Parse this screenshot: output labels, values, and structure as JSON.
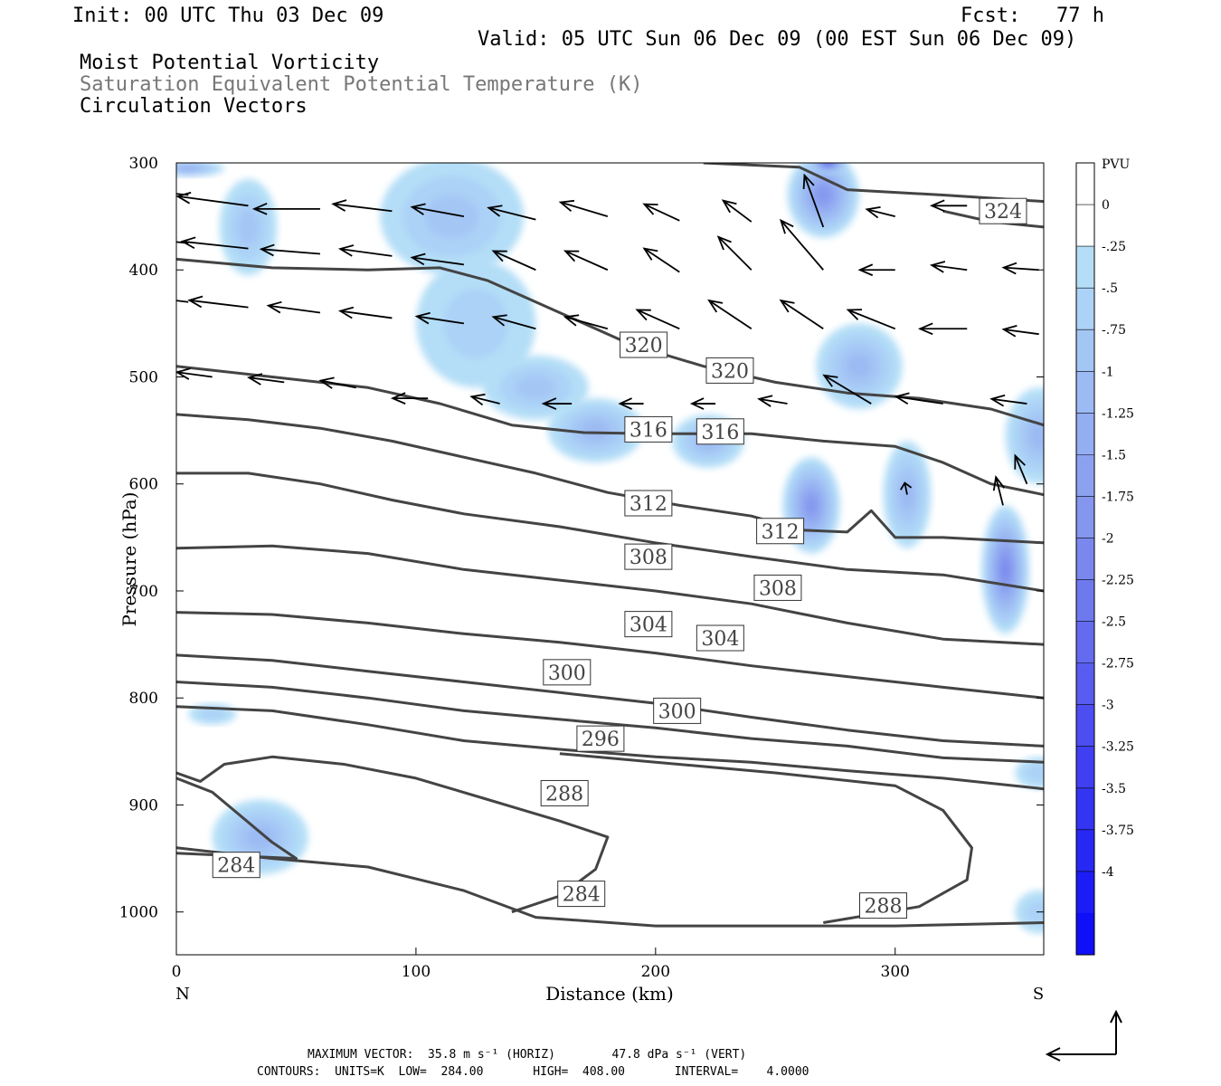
{
  "header": {
    "init": "Init: 00 UTC Thu 03 Dec 09",
    "fcst": "Fcst:   77 h",
    "valid": "Valid: 05 UTC Sun 06 Dec 09 (00 EST Sun 06 Dec 09)",
    "field1": "Moist Potential Vorticity",
    "field2": "Saturation Equivalent Potential Temperature (K)",
    "field3": "Circulation Vectors"
  },
  "footer": {
    "max_vector": "MAXIMUM VECTOR:  35.8 m s⁻¹ (HORIZ)        47.8 dPa s⁻¹ (VERT)",
    "contours": "CONTOURS:  UNITS=K  LOW=  284.00       HIGH=  408.00       INTERVAL=    4.0000"
  },
  "colors": {
    "contour": "#444444",
    "vector": "#000000",
    "pv_light": "#b4def7",
    "pv_mid": "#7f96ee",
    "pv_dark": "#2a35f2"
  },
  "chart_data": {
    "type": "cross-section",
    "xlabel": "Distance (km)",
    "ylabel": "Pressure (hPa)",
    "xlim": [
      0,
      362
    ],
    "ylim": [
      1040,
      300
    ],
    "y_scale": "linear",
    "xticks": [
      0,
      100,
      200,
      300
    ],
    "yticks": [
      300,
      400,
      500,
      600,
      700,
      800,
      900,
      1000
    ],
    "x_endpoints": {
      "left": "N",
      "right": "S"
    },
    "colorbar": {
      "label": "PVU",
      "ticks": [
        "0",
        "-.25",
        "-.5",
        "-.75",
        "-1",
        "-1.25",
        "-1.5",
        "-1.75",
        "-2",
        "-2.25",
        "-2.5",
        "-2.75",
        "-3",
        "-3.25",
        "-3.5",
        "-3.75",
        "-4"
      ],
      "colors": [
        "#ffffff",
        "#ffffff",
        "#b4def7",
        "#acd2f7",
        "#a4c6f5",
        "#9cbaf3",
        "#94aef2",
        "#8ca2f0",
        "#8496ee",
        "#7a88ee",
        "#6f79ee",
        "#646bef",
        "#585cf0",
        "#4c4ef1",
        "#4040f2",
        "#3434f3",
        "#2828f4",
        "#1c1cf6",
        "#0f0ff8"
      ]
    },
    "contour_interval": 4,
    "contours": [
      {
        "label": "324",
        "points": [
          [
            220,
            300
          ],
          [
            260,
            304
          ],
          [
            280,
            325
          ],
          [
            320,
            330
          ],
          [
            362,
            336
          ]
        ]
      },
      {
        "label": "324",
        "points": [
          [
            320,
            345
          ],
          [
            340,
            355
          ],
          [
            362,
            360
          ]
        ]
      },
      {
        "label": "320",
        "points": [
          [
            0,
            390
          ],
          [
            40,
            398
          ],
          [
            80,
            400
          ],
          [
            110,
            398
          ],
          [
            130,
            410
          ],
          [
            160,
            440
          ],
          [
            190,
            470
          ],
          [
            220,
            490
          ],
          [
            250,
            505
          ],
          [
            280,
            515
          ],
          [
            310,
            520
          ],
          [
            340,
            530
          ],
          [
            362,
            545
          ]
        ]
      },
      {
        "label": "316",
        "points": [
          [
            0,
            490
          ],
          [
            40,
            500
          ],
          [
            80,
            510
          ],
          [
            110,
            525
          ],
          [
            140,
            545
          ],
          [
            170,
            552
          ],
          [
            200,
            553
          ],
          [
            240,
            553
          ],
          [
            270,
            560
          ],
          [
            300,
            565
          ],
          [
            320,
            580
          ],
          [
            340,
            600
          ],
          [
            362,
            610
          ]
        ]
      },
      {
        "label": "312",
        "points": [
          [
            0,
            535
          ],
          [
            30,
            540
          ],
          [
            60,
            548
          ],
          [
            90,
            560
          ],
          [
            120,
            575
          ],
          [
            150,
            590
          ],
          [
            180,
            608
          ],
          [
            210,
            620
          ],
          [
            240,
            630
          ],
          [
            260,
            643
          ],
          [
            280,
            645
          ],
          [
            290,
            625
          ],
          [
            300,
            650
          ],
          [
            320,
            650
          ],
          [
            362,
            655
          ]
        ]
      },
      {
        "label": "308",
        "points": [
          [
            0,
            590
          ],
          [
            30,
            590
          ],
          [
            60,
            600
          ],
          [
            90,
            615
          ],
          [
            120,
            628
          ],
          [
            160,
            640
          ],
          [
            200,
            655
          ],
          [
            240,
            668
          ],
          [
            280,
            680
          ],
          [
            320,
            685
          ],
          [
            362,
            700
          ]
        ]
      },
      {
        "label": "304",
        "points": [
          [
            0,
            660
          ],
          [
            40,
            658
          ],
          [
            80,
            665
          ],
          [
            120,
            680
          ],
          [
            160,
            690
          ],
          [
            200,
            700
          ],
          [
            240,
            712
          ],
          [
            280,
            730
          ],
          [
            320,
            745
          ],
          [
            362,
            750
          ]
        ]
      },
      {
        "label": "300",
        "points": [
          [
            0,
            720
          ],
          [
            40,
            722
          ],
          [
            80,
            730
          ],
          [
            120,
            740
          ],
          [
            160,
            748
          ],
          [
            200,
            758
          ],
          [
            240,
            770
          ],
          [
            280,
            780
          ],
          [
            320,
            790
          ],
          [
            362,
            800
          ]
        ]
      },
      {
        "label": "296",
        "points": [
          [
            0,
            760
          ],
          [
            40,
            765
          ],
          [
            80,
            775
          ],
          [
            120,
            785
          ],
          [
            160,
            795
          ],
          [
            200,
            805
          ],
          [
            240,
            818
          ],
          [
            280,
            830
          ],
          [
            320,
            840
          ],
          [
            362,
            845
          ]
        ]
      },
      {
        "label": "288",
        "points": [
          [
            0,
            785
          ],
          [
            40,
            790
          ],
          [
            80,
            800
          ],
          [
            120,
            812
          ],
          [
            160,
            820
          ],
          [
            200,
            828
          ],
          [
            240,
            838
          ],
          [
            280,
            845
          ],
          [
            320,
            856
          ],
          [
            362,
            860
          ]
        ]
      },
      {
        "label": "288",
        "points": [
          [
            0,
            808
          ],
          [
            40,
            812
          ],
          [
            80,
            825
          ],
          [
            120,
            840
          ],
          [
            160,
            848
          ],
          [
            200,
            855
          ],
          [
            240,
            860
          ],
          [
            280,
            868
          ],
          [
            320,
            875
          ],
          [
            362,
            885
          ]
        ]
      },
      {
        "label": "284",
        "points": [
          [
            0,
            870
          ],
          [
            10,
            878
          ],
          [
            20,
            862
          ],
          [
            40,
            855
          ],
          [
            70,
            862
          ],
          [
            100,
            875
          ],
          [
            130,
            895
          ],
          [
            160,
            915
          ],
          [
            180,
            930
          ],
          [
            175,
            960
          ],
          [
            160,
            985
          ],
          [
            140,
            1000
          ]
        ]
      },
      {
        "label": "284",
        "points": [
          [
            0,
            875
          ],
          [
            15,
            888
          ],
          [
            40,
            935
          ],
          [
            50,
            950
          ],
          [
            0,
            945
          ]
        ]
      },
      {
        "label": "288",
        "points": [
          [
            270,
            1010
          ],
          [
            310,
            995
          ],
          [
            330,
            970
          ],
          [
            332,
            940
          ],
          [
            320,
            905
          ],
          [
            300,
            882
          ],
          [
            250,
            870
          ],
          [
            200,
            860
          ],
          [
            160,
            852
          ]
        ]
      },
      {
        "label": "",
        "points": [
          [
            0,
            940
          ],
          [
            40,
            950
          ],
          [
            80,
            958
          ],
          [
            120,
            980
          ],
          [
            150,
            1005
          ],
          [
            200,
            1013
          ],
          [
            300,
            1013
          ],
          [
            362,
            1010
          ]
        ]
      }
    ],
    "contour_labels": [
      {
        "text": "324",
        "x": 345,
        "y": 345
      },
      {
        "text": "320",
        "x": 195,
        "y": 470
      },
      {
        "text": "320",
        "x": 231,
        "y": 494
      },
      {
        "text": "316",
        "x": 197,
        "y": 549
      },
      {
        "text": "316",
        "x": 227,
        "y": 551
      },
      {
        "text": "312",
        "x": 197,
        "y": 618
      },
      {
        "text": "312",
        "x": 252,
        "y": 644
      },
      {
        "text": "308",
        "x": 197,
        "y": 668
      },
      {
        "text": "308",
        "x": 251,
        "y": 697
      },
      {
        "text": "304",
        "x": 197,
        "y": 731
      },
      {
        "text": "304",
        "x": 227,
        "y": 744
      },
      {
        "text": "300",
        "x": 163,
        "y": 776
      },
      {
        "text": "300",
        "x": 209,
        "y": 812
      },
      {
        "text": "296",
        "x": 177,
        "y": 838
      },
      {
        "text": "288",
        "x": 162,
        "y": 889
      },
      {
        "text": "284",
        "x": 25,
        "y": 956
      },
      {
        "text": "284",
        "x": 169,
        "y": 983
      },
      {
        "text": "288",
        "x": 295,
        "y": 994
      }
    ],
    "pv_blobs": [
      {
        "x": 30,
        "y": 360,
        "rx": 12,
        "ry": 45,
        "level": 2
      },
      {
        "x": 5,
        "y": 305,
        "rx": 15,
        "ry": 8,
        "level": 4
      },
      {
        "x": 115,
        "y": 350,
        "rx": 30,
        "ry": 55,
        "level": 2
      },
      {
        "x": 125,
        "y": 450,
        "rx": 25,
        "ry": 60,
        "level": 1
      },
      {
        "x": 150,
        "y": 510,
        "rx": 22,
        "ry": 30,
        "level": 2
      },
      {
        "x": 175,
        "y": 550,
        "rx": 20,
        "ry": 30,
        "level": 3
      },
      {
        "x": 222,
        "y": 560,
        "rx": 15,
        "ry": 25,
        "level": 3
      },
      {
        "x": 265,
        "y": 620,
        "rx": 12,
        "ry": 45,
        "level": 6
      },
      {
        "x": 270,
        "y": 330,
        "rx": 15,
        "ry": 40,
        "level": 6
      },
      {
        "x": 272,
        "y": 300,
        "rx": 8,
        "ry": 10,
        "level": 10
      },
      {
        "x": 285,
        "y": 490,
        "rx": 18,
        "ry": 40,
        "level": 3
      },
      {
        "x": 305,
        "y": 610,
        "rx": 10,
        "ry": 50,
        "level": 3
      },
      {
        "x": 346,
        "y": 680,
        "rx": 10,
        "ry": 60,
        "level": 7
      },
      {
        "x": 360,
        "y": 555,
        "rx": 14,
        "ry": 45,
        "level": 3
      },
      {
        "x": 35,
        "y": 930,
        "rx": 20,
        "ry": 35,
        "level": 3
      },
      {
        "x": 15,
        "y": 815,
        "rx": 10,
        "ry": 10,
        "level": 1
      },
      {
        "x": 360,
        "y": 1000,
        "rx": 10,
        "ry": 20,
        "level": 1
      },
      {
        "x": 360,
        "y": 870,
        "rx": 10,
        "ry": 15,
        "level": 1
      }
    ],
    "vectors": [
      {
        "x": 5,
        "y": 330,
        "u": 30,
        "v": -3
      },
      {
        "x": 30,
        "y": 340,
        "u": 30,
        "v": -4
      },
      {
        "x": 60,
        "y": 343,
        "u": 28,
        "v": 0
      },
      {
        "x": 90,
        "y": 345,
        "u": 25,
        "v": -3
      },
      {
        "x": 120,
        "y": 350,
        "u": 22,
        "v": -4
      },
      {
        "x": 150,
        "y": 353,
        "u": 20,
        "v": -5
      },
      {
        "x": 180,
        "y": 350,
        "u": 20,
        "v": -6
      },
      {
        "x": 210,
        "y": 354,
        "u": 15,
        "v": -7
      },
      {
        "x": 240,
        "y": 355,
        "u": 12,
        "v": -9
      },
      {
        "x": 270,
        "y": 360,
        "u": 8,
        "v": -22
      },
      {
        "x": 300,
        "y": 350,
        "u": 12,
        "v": -3
      },
      {
        "x": 330,
        "y": 340,
        "u": 15,
        "v": 0
      },
      {
        "x": 5,
        "y": 375,
        "u": 30,
        "v": -3
      },
      {
        "x": 30,
        "y": 380,
        "u": 28,
        "v": -3
      },
      {
        "x": 60,
        "y": 385,
        "u": 25,
        "v": -2
      },
      {
        "x": 90,
        "y": 387,
        "u": 22,
        "v": -3
      },
      {
        "x": 120,
        "y": 395,
        "u": 22,
        "v": -3
      },
      {
        "x": 150,
        "y": 400,
        "u": 18,
        "v": -8
      },
      {
        "x": 180,
        "y": 400,
        "u": 18,
        "v": -8
      },
      {
        "x": 210,
        "y": 402,
        "u": 15,
        "v": -10
      },
      {
        "x": 240,
        "y": 400,
        "u": 14,
        "v": -14
      },
      {
        "x": 270,
        "y": 400,
        "u": 18,
        "v": -21
      },
      {
        "x": 300,
        "y": 400,
        "u": 15,
        "v": 0
      },
      {
        "x": 330,
        "y": 400,
        "u": 15,
        "v": -2
      },
      {
        "x": 360,
        "y": 400,
        "u": 15,
        "v": -1
      },
      {
        "x": 5,
        "y": 430,
        "u": 25,
        "v": -3
      },
      {
        "x": 30,
        "y": 435,
        "u": 25,
        "v": -3
      },
      {
        "x": 60,
        "y": 440,
        "u": 22,
        "v": -3
      },
      {
        "x": 90,
        "y": 445,
        "u": 22,
        "v": -3
      },
      {
        "x": 120,
        "y": 450,
        "u": 20,
        "v": -3
      },
      {
        "x": 150,
        "y": 455,
        "u": 18,
        "v": -5
      },
      {
        "x": 180,
        "y": 455,
        "u": 18,
        "v": -5
      },
      {
        "x": 210,
        "y": 455,
        "u": 18,
        "v": -8
      },
      {
        "x": 240,
        "y": 455,
        "u": 18,
        "v": -12
      },
      {
        "x": 270,
        "y": 455,
        "u": 18,
        "v": -12
      },
      {
        "x": 300,
        "y": 455,
        "u": 20,
        "v": -8
      },
      {
        "x": 330,
        "y": 455,
        "u": 20,
        "v": 0
      },
      {
        "x": 360,
        "y": 460,
        "u": 15,
        "v": -2
      },
      {
        "x": 15,
        "y": 500,
        "u": 15,
        "v": -2
      },
      {
        "x": 45,
        "y": 505,
        "u": 15,
        "v": -2
      },
      {
        "x": 75,
        "y": 510,
        "u": 15,
        "v": -3
      },
      {
        "x": 105,
        "y": 520,
        "u": 15,
        "v": 0
      },
      {
        "x": 135,
        "y": 525,
        "u": 12,
        "v": -3
      },
      {
        "x": 165,
        "y": 525,
        "u": 12,
        "v": 0
      },
      {
        "x": 195,
        "y": 525,
        "u": 10,
        "v": 0
      },
      {
        "x": 225,
        "y": 525,
        "u": 10,
        "v": 0
      },
      {
        "x": 255,
        "y": 525,
        "u": 12,
        "v": -2
      },
      {
        "x": 290,
        "y": 525,
        "u": 20,
        "v": -12
      },
      {
        "x": 320,
        "y": 525,
        "u": 20,
        "v": -3
      },
      {
        "x": 355,
        "y": 525,
        "u": 15,
        "v": -2
      },
      {
        "x": 355,
        "y": 600,
        "u": 5,
        "v": -12
      },
      {
        "x": 345,
        "y": 620,
        "u": 3,
        "v": -12
      },
      {
        "x": 305,
        "y": 610,
        "u": 1,
        "v": -5
      }
    ]
  }
}
